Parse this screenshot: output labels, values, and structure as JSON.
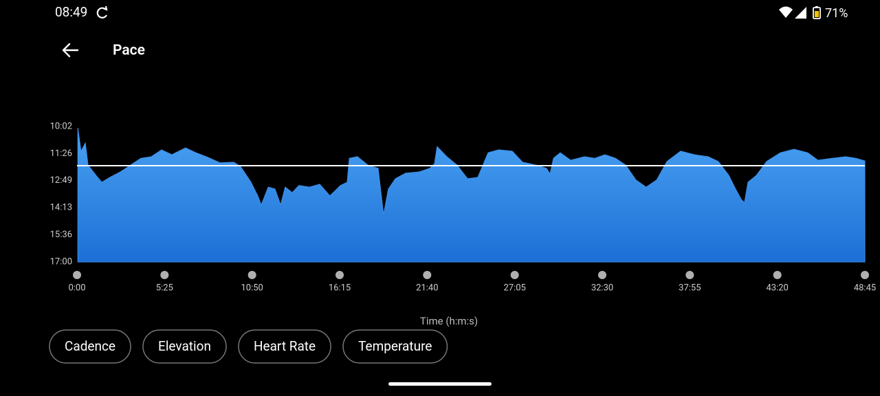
{
  "status_bar": {
    "time": "08:49",
    "battery": "71%"
  },
  "header": {
    "title": "Pace"
  },
  "chart_data": {
    "type": "area",
    "x": [
      3,
      15,
      31,
      41,
      71,
      92,
      122,
      161,
      199,
      237,
      276,
      314,
      352,
      403,
      442,
      480,
      531,
      582,
      607,
      646,
      671,
      684,
      710,
      735,
      756,
      773,
      799,
      824,
      863,
      901,
      939,
      978,
      1003,
      1011,
      1041,
      1080,
      1118,
      1138,
      1156,
      1182,
      1220,
      1271,
      1309,
      1327,
      1337,
      1373,
      1411,
      1450,
      1488,
      1526,
      1565,
      1616,
      1654,
      1705,
      1743,
      1756,
      1769,
      1794,
      1833,
      1884,
      1922,
      1960,
      1999,
      2037,
      2075,
      2113,
      2152,
      2190,
      2241,
      2292,
      2343,
      2381,
      2420,
      2445,
      2466,
      2478,
      2491,
      2522,
      2560,
      2611,
      2662,
      2713,
      2751,
      2803,
      2854,
      2892,
      2925
    ],
    "series": [
      {
        "color": "#3d8fe8",
        "values": [
          606,
          678,
          653,
          721,
          753,
          774,
          759,
          742,
          721,
          700,
          695,
          674,
          689,
          668,
          683,
          695,
          714,
          712,
          725,
          774,
          816,
          844,
          789,
          795,
          844,
          789,
          806,
          784,
          789,
          780,
          816,
          784,
          774,
          700,
          695,
          721,
          731,
          874,
          795,
          763,
          746,
          742,
          731,
          717,
          664,
          695,
          721,
          763,
          759,
          683,
          674,
          678,
          712,
          721,
          731,
          748,
          700,
          683,
          706,
          695,
          700,
          689,
          700,
          721,
          767,
          789,
          767,
          710,
          678,
          689,
          695,
          710,
          753,
          795,
          827,
          837,
          774,
          753,
          710,
          683,
          672,
          683,
          706,
          700,
          695,
          700,
          708
        ]
      }
    ],
    "average": 723,
    "xlabel": "Time (h:m:s)",
    "xlim": [
      0,
      2925
    ],
    "xticks": [
      {
        "value": 0,
        "label": "0:00"
      },
      {
        "value": 325,
        "label": "5:25"
      },
      {
        "value": 650,
        "label": "10:50"
      },
      {
        "value": 975,
        "label": "16:15"
      },
      {
        "value": 1300,
        "label": "21:40"
      },
      {
        "value": 1625,
        "label": "27:05"
      },
      {
        "value": 1950,
        "label": "32:30"
      },
      {
        "value": 2275,
        "label": "37:55"
      },
      {
        "value": 2600,
        "label": "43:20"
      },
      {
        "value": 2925,
        "label": "48:45"
      }
    ],
    "ylim": [
      1020,
      602
    ],
    "yticks": [
      {
        "value": 602,
        "label": "10:02"
      },
      {
        "value": 686,
        "label": "11:26"
      },
      {
        "value": 769,
        "label": "12:49"
      },
      {
        "value": 853,
        "label": "14:13"
      },
      {
        "value": 936,
        "label": "15:36"
      },
      {
        "value": 1020,
        "label": "17:00"
      }
    ]
  },
  "chips": [
    "Cadence",
    "Elevation",
    "Heart Rate",
    "Temperature"
  ]
}
